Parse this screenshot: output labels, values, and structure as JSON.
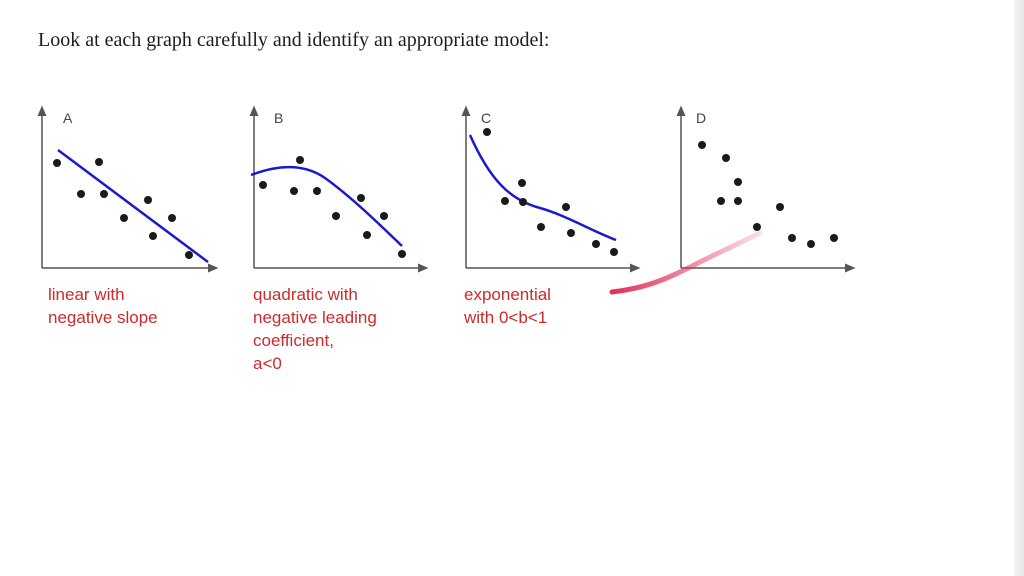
{
  "title": "Look at each graph carefully and identify an appropriate model:",
  "graphs": [
    {
      "letter": "A",
      "label_lines": [
        "linear with",
        "negative slope"
      ]
    },
    {
      "letter": "B",
      "label_lines": [
        "quadratic with",
        "negative leading",
        "coefficient,",
        "a<0"
      ]
    },
    {
      "letter": "C",
      "label_lines": [
        "exponential",
        "with 0<b<1"
      ]
    },
    {
      "letter": "D",
      "label_lines": []
    }
  ],
  "colors": {
    "curve": "#1a1acc",
    "annotation": "#cc2b2b",
    "points": "#1a1a1a",
    "ink": "#e0305a"
  }
}
